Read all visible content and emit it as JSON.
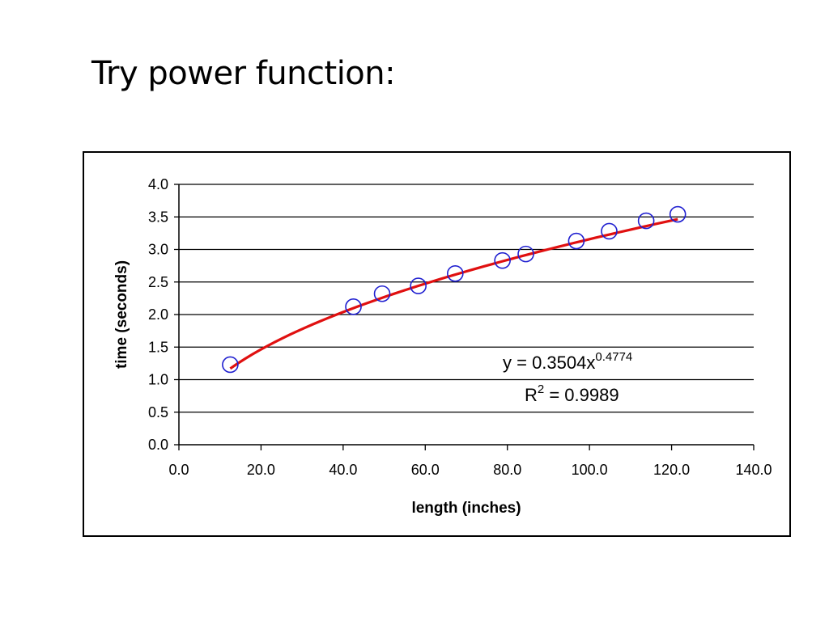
{
  "slide": {
    "title": "Try power function:"
  },
  "chart_data": {
    "type": "scatter",
    "xlabel": "length (inches)",
    "ylabel": "time (seconds)",
    "xlim": [
      0,
      140
    ],
    "ylim": [
      0,
      4
    ],
    "xticks": [
      "0.0",
      "20.0",
      "40.0",
      "60.0",
      "80.0",
      "100.0",
      "120.0",
      "140.0"
    ],
    "yticks": [
      "0.0",
      "0.5",
      "1.0",
      "1.5",
      "2.0",
      "2.5",
      "3.0",
      "3.5",
      "4.0"
    ],
    "grid": "horizontal",
    "series": [
      {
        "x": [
          12.5,
          42.5,
          49.5,
          58.3,
          67.3,
          78.8,
          84.5,
          96.8,
          104.8,
          113.8,
          121.5
        ],
        "y": [
          1.23,
          2.12,
          2.32,
          2.44,
          2.63,
          2.83,
          2.93,
          3.13,
          3.28,
          3.44,
          3.54
        ],
        "marker": "circle",
        "color": "#1f1fd0"
      }
    ],
    "trendline": {
      "kind": "power",
      "a": 0.3504,
      "b": 0.4774,
      "x_range": [
        12.5,
        121.5
      ],
      "color": "#e01010",
      "equation_prefix": "y = 0.3504x",
      "equation_exponent": "0.4774",
      "r2_prefix": "R",
      "r2_exponent": "2",
      "r2_suffix": " = 0.9989"
    }
  }
}
